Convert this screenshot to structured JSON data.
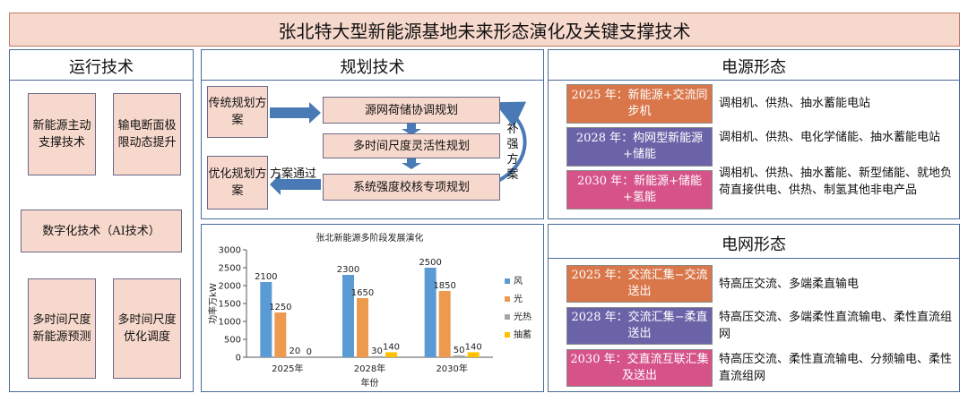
{
  "title": "张北特大型新能源基地未来形态演化及关键支撑技术",
  "operation": {
    "title": "运行技术",
    "items": [
      "新能源主动支撑技术",
      "输电断面极限动态提升",
      "数字化技术（AI技术）",
      "多时间尺度新能源预测",
      "多时间尺度优化调度"
    ]
  },
  "planning": {
    "title": "规划技术",
    "traditional": "传统规划方案",
    "optimized": "优化规划方案",
    "steps": [
      "源网荷储协调规划",
      "多时间尺度灵活性规划",
      "系统强度校核专项规划"
    ],
    "pass_label": "方案通过",
    "supplement": [
      "补",
      "强",
      "方",
      "案"
    ]
  },
  "chart_data": {
    "type": "bar",
    "title": "张北新能源多阶段发展演化",
    "categories": [
      "2025年",
      "2028年",
      "2030年"
    ],
    "xlabel": "年份",
    "ylabel": "功率万kW",
    "ylim": [
      0,
      3000
    ],
    "yticks": [
      "0",
      "500",
      "1000",
      "1500",
      "2000",
      "2500",
      "3000"
    ],
    "series": [
      {
        "name": "风",
        "values": [
          2100,
          2300,
          2500
        ],
        "labels": [
          "2100",
          "2300",
          "2500"
        ],
        "color": "#5b9bd5"
      },
      {
        "name": "光",
        "values": [
          1250,
          1650,
          1850
        ],
        "labels": [
          "1250",
          "1650",
          "1850"
        ],
        "color": "#ed9a4f"
      },
      {
        "name": "光热",
        "values": [
          20,
          30,
          50
        ],
        "labels": [
          "20",
          "30",
          "50"
        ],
        "color": "#a5a5a5"
      },
      {
        "name": "抽蓄",
        "values": [
          0,
          140,
          140
        ],
        "labels": [
          "0",
          "140",
          "140"
        ],
        "color": "#ffc000"
      }
    ],
    "legend": "right"
  },
  "power": {
    "title": "电源形态",
    "stages": [
      {
        "label": "2025 年：新能源+交流同步机",
        "desc": "调相机、供热、抽水蓄能电站",
        "color": "#d9774a"
      },
      {
        "label": "2028 年：构网型新能源+储能",
        "desc": "调相机、供热、电化学储能、抽水蓄能电站",
        "color": "#6b63a8"
      },
      {
        "label": "2030 年：新能源+储能+氢能",
        "desc": "调相机、供热、抽水蓄能、新型储能、就地负荷直接供电、供热、制氢其他非电产品",
        "color": "#d6538a"
      }
    ]
  },
  "grid": {
    "title": "电网形态",
    "stages": [
      {
        "label": "2025 年：交流汇集−交流送出",
        "desc": "特高压交流、多端柔直输电",
        "color": "#d9774a"
      },
      {
        "label": "2028 年：交流汇集−柔直送出",
        "desc": "特高压交流、多端柔性直流输电、柔性直流组网",
        "color": "#6b63a8"
      },
      {
        "label": "2030 年：交直流互联汇集及送出",
        "desc": "特高压交流、柔性直流输电、分频输电、柔性直流组网",
        "color": "#d6538a"
      }
    ]
  }
}
